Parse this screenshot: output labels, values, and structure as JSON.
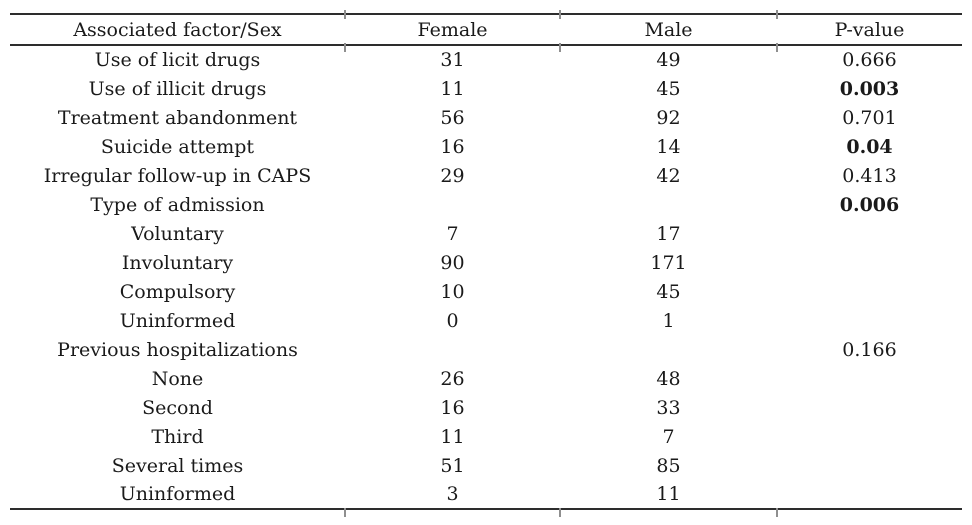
{
  "colors": {
    "text": "#1a1a1a",
    "rule": "#2d2d2d",
    "tick": "#8f8f8f",
    "background": "#ffffff"
  },
  "table": {
    "columns": [
      {
        "key": "factor",
        "label": "Associated factor/Sex"
      },
      {
        "key": "female",
        "label": "Female"
      },
      {
        "key": "male",
        "label": "Male"
      },
      {
        "key": "pvalue",
        "label": "P-value"
      }
    ],
    "rows": [
      {
        "factor": "Use of licit drugs",
        "female": "31",
        "male": "49",
        "pvalue": "0.666",
        "pvalue_bold": false
      },
      {
        "factor": "Use of illicit drugs",
        "female": "11",
        "male": "45",
        "pvalue": "0.003",
        "pvalue_bold": true
      },
      {
        "factor": "Treatment abandonment",
        "female": "56",
        "male": "92",
        "pvalue": "0.701",
        "pvalue_bold": false
      },
      {
        "factor": "Suicide attempt",
        "female": "16",
        "male": "14",
        "pvalue": "0.04",
        "pvalue_bold": true
      },
      {
        "factor": "Irregular follow-up in CAPS",
        "female": "29",
        "male": "42",
        "pvalue": "0.413",
        "pvalue_bold": false
      },
      {
        "factor": "Type of admission",
        "female": "",
        "male": "",
        "pvalue": "0.006",
        "pvalue_bold": true
      },
      {
        "factor": "Voluntary",
        "female": "7",
        "male": "17",
        "pvalue": "",
        "pvalue_bold": false
      },
      {
        "factor": "Involuntary",
        "female": "90",
        "male": "171",
        "pvalue": "",
        "pvalue_bold": false
      },
      {
        "factor": "Compulsory",
        "female": "10",
        "male": "45",
        "pvalue": "",
        "pvalue_bold": false
      },
      {
        "factor": "Uninformed",
        "female": "0",
        "male": "1",
        "pvalue": "",
        "pvalue_bold": false
      },
      {
        "factor": "Previous hospitalizations",
        "female": "",
        "male": "",
        "pvalue": "0.166",
        "pvalue_bold": false
      },
      {
        "factor": "None",
        "female": "26",
        "male": "48",
        "pvalue": "",
        "pvalue_bold": false
      },
      {
        "factor": "Second",
        "female": "16",
        "male": "33",
        "pvalue": "",
        "pvalue_bold": false
      },
      {
        "factor": "Third",
        "female": "11",
        "male": "7",
        "pvalue": "",
        "pvalue_bold": false
      },
      {
        "factor": "Several times",
        "female": "51",
        "male": "85",
        "pvalue": "",
        "pvalue_bold": false
      },
      {
        "factor": "Uninformed",
        "female": "3",
        "male": "11",
        "pvalue": "",
        "pvalue_bold": false
      }
    ]
  },
  "chart_data": {
    "type": "table",
    "title": "Associated factors by sex with p-values",
    "columns": [
      "Associated factor/Sex",
      "Female",
      "Male",
      "P-value"
    ],
    "rows": [
      [
        "Use of licit drugs",
        31,
        49,
        "0.666"
      ],
      [
        "Use of illicit drugs",
        11,
        45,
        "0.003"
      ],
      [
        "Treatment abandonment",
        56,
        92,
        "0.701"
      ],
      [
        "Suicide attempt",
        16,
        14,
        "0.04"
      ],
      [
        "Irregular follow-up in CAPS",
        29,
        42,
        "0.413"
      ],
      [
        "Type of admission",
        null,
        null,
        "0.006"
      ],
      [
        "Voluntary",
        7,
        17,
        null
      ],
      [
        "Involuntary",
        90,
        171,
        null
      ],
      [
        "Compulsory",
        10,
        45,
        null
      ],
      [
        "Uninformed",
        0,
        1,
        null
      ],
      [
        "Previous hospitalizations",
        null,
        null,
        "0.166"
      ],
      [
        "None",
        26,
        48,
        null
      ],
      [
        "Second",
        16,
        33,
        null
      ],
      [
        "Third",
        11,
        7,
        null
      ],
      [
        "Several times",
        51,
        85,
        null
      ],
      [
        "Uninformed",
        3,
        11,
        null
      ]
    ],
    "bold_pvalues": [
      "0.003",
      "0.04",
      "0.006"
    ]
  }
}
